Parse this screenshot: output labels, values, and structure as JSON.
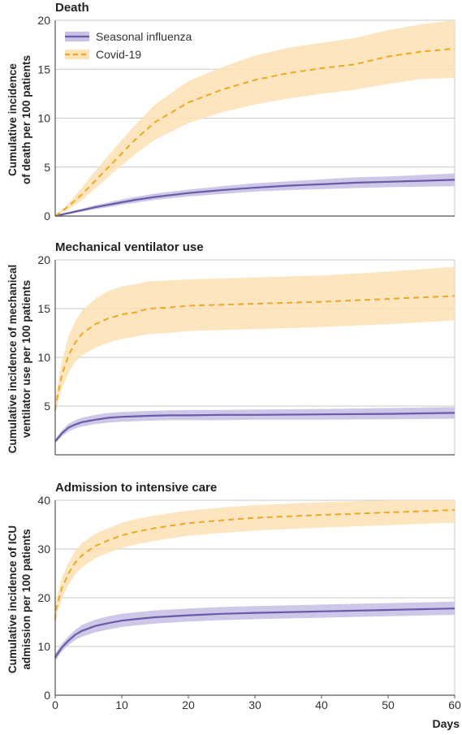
{
  "colors": {
    "influenza_line": "#6a5aa8",
    "influenza_band": "#c9c1e6",
    "covid_line": "#f0a81e",
    "covid_band": "#fde2b4",
    "grid": "#c8c8c8",
    "axis": "#555555"
  },
  "legend": {
    "items": [
      {
        "label": "Seasonal influenza",
        "style": "solid",
        "color_key": "influenza_line",
        "band_key": "influenza_band"
      },
      {
        "label": "Covid-19",
        "style": "dashed",
        "color_key": "covid_line",
        "band_key": "covid_band"
      }
    ]
  },
  "chart_data": [
    {
      "type": "line",
      "title": "Death",
      "ylabel_lines": [
        "Cumulative incidence",
        "of death per 100 patients"
      ],
      "xlabel": "",
      "xlim": [
        0,
        60
      ],
      "ylim": [
        0,
        20
      ],
      "yticks": [
        0,
        5,
        10,
        15,
        20
      ],
      "xticks": [],
      "grid": true,
      "legend_position": "top-left",
      "x": [
        0,
        2,
        4,
        6,
        8,
        10,
        12,
        15,
        20,
        25,
        30,
        35,
        40,
        45,
        50,
        55,
        60
      ],
      "series": [
        {
          "name": "Seasonal influenza",
          "style": "solid",
          "values": [
            0,
            0.3,
            0.6,
            0.9,
            1.15,
            1.4,
            1.65,
            1.95,
            2.35,
            2.65,
            2.9,
            3.1,
            3.25,
            3.4,
            3.5,
            3.6,
            3.7
          ],
          "lower": [
            0,
            0.2,
            0.45,
            0.7,
            0.9,
            1.15,
            1.35,
            1.65,
            2.0,
            2.25,
            2.5,
            2.65,
            2.75,
            2.85,
            2.95,
            3.0,
            3.05
          ],
          "upper": [
            0,
            0.4,
            0.75,
            1.1,
            1.4,
            1.7,
            1.95,
            2.3,
            2.7,
            3.05,
            3.35,
            3.55,
            3.75,
            3.95,
            4.05,
            4.2,
            4.35
          ]
        },
        {
          "name": "Covid-19",
          "style": "dashed",
          "values": [
            0,
            1.0,
            2.2,
            3.6,
            5.0,
            6.4,
            7.8,
            9.6,
            11.6,
            12.9,
            13.9,
            14.6,
            15.1,
            15.5,
            16.3,
            16.8,
            17.1
          ],
          "lower": [
            0,
            0.7,
            1.6,
            2.8,
            4.0,
            5.2,
            6.3,
            7.8,
            9.5,
            10.6,
            11.4,
            12.0,
            12.5,
            12.9,
            13.5,
            14.0,
            14.1
          ],
          "upper": [
            0,
            1.3,
            2.9,
            4.6,
            6.2,
            7.8,
            9.3,
            11.4,
            13.8,
            15.2,
            16.4,
            17.2,
            17.7,
            18.2,
            19.0,
            19.6,
            20.0
          ]
        }
      ]
    },
    {
      "type": "line",
      "title": "Mechanical ventilator use",
      "ylabel_lines": [
        "Cumulative incidence of mechanical",
        "ventilator use per 100 patients"
      ],
      "xlabel": "",
      "xlim": [
        0,
        60
      ],
      "ylim": [
        0,
        20
      ],
      "yticks": [
        5,
        10,
        15,
        20
      ],
      "xticks": [],
      "grid": true,
      "x": [
        0,
        0.1,
        1,
        2,
        3,
        4,
        6,
        8,
        10,
        12,
        14,
        17,
        20,
        25,
        30,
        40,
        50,
        60
      ],
      "series": [
        {
          "name": "Seasonal influenza",
          "style": "solid",
          "values": [
            1.4,
            1.45,
            2.2,
            2.8,
            3.1,
            3.35,
            3.6,
            3.8,
            3.9,
            3.95,
            4.0,
            4.05,
            4.05,
            4.1,
            4.1,
            4.15,
            4.2,
            4.3
          ],
          "lower": [
            1.2,
            1.25,
            1.9,
            2.4,
            2.7,
            2.9,
            3.15,
            3.3,
            3.4,
            3.45,
            3.5,
            3.55,
            3.55,
            3.55,
            3.6,
            3.6,
            3.65,
            3.7
          ],
          "upper": [
            1.6,
            1.7,
            2.5,
            3.2,
            3.55,
            3.8,
            4.1,
            4.3,
            4.4,
            4.45,
            4.5,
            4.55,
            4.6,
            4.6,
            4.65,
            4.7,
            4.8,
            4.9
          ]
        },
        {
          "name": "Covid-19",
          "style": "dashed",
          "values": [
            4.6,
            5.2,
            8.2,
            10.2,
            11.5,
            12.4,
            13.4,
            14.0,
            14.4,
            14.6,
            15.0,
            15.1,
            15.3,
            15.4,
            15.5,
            15.7,
            16.0,
            16.3
          ],
          "lower": [
            3.9,
            4.5,
            6.8,
            8.4,
            9.5,
            10.2,
            11.0,
            11.5,
            11.9,
            12.1,
            12.4,
            12.5,
            12.7,
            12.8,
            12.9,
            13.1,
            13.4,
            13.8
          ],
          "upper": [
            5.4,
            6.0,
            9.6,
            12.2,
            13.7,
            14.8,
            16.0,
            16.8,
            17.3,
            17.5,
            17.8,
            17.9,
            18.0,
            18.1,
            18.2,
            18.4,
            18.8,
            19.3
          ]
        }
      ]
    },
    {
      "type": "line",
      "title": "Admission to intensive care",
      "ylabel_lines": [
        "Cumulative incidence of ICU",
        "admission per 100 patients"
      ],
      "xlabel": "Days",
      "xlim": [
        0,
        60
      ],
      "ylim": [
        0,
        40
      ],
      "yticks": [
        0,
        10,
        20,
        30,
        40
      ],
      "xticks": [
        0,
        10,
        20,
        30,
        40,
        50,
        60
      ],
      "grid": true,
      "x": [
        0,
        0.1,
        1,
        2,
        3,
        4,
        6,
        8,
        10,
        12,
        15,
        20,
        25,
        30,
        40,
        50,
        60
      ],
      "series": [
        {
          "name": "Seasonal influenza",
          "style": "solid",
          "values": [
            7.6,
            8.0,
            9.8,
            11.2,
            12.4,
            13.2,
            14.2,
            14.8,
            15.3,
            15.6,
            16.0,
            16.4,
            16.7,
            16.9,
            17.2,
            17.5,
            17.8
          ],
          "lower": [
            6.9,
            7.3,
            9.0,
            10.3,
            11.3,
            12.0,
            12.9,
            13.5,
            14.0,
            14.3,
            14.7,
            15.1,
            15.4,
            15.6,
            15.9,
            16.2,
            16.5
          ],
          "upper": [
            8.3,
            8.7,
            10.6,
            12.1,
            13.4,
            14.4,
            15.5,
            16.2,
            16.7,
            17.0,
            17.4,
            17.8,
            18.1,
            18.3,
            18.6,
            18.9,
            19.2
          ]
        },
        {
          "name": "Covid-19",
          "style": "dashed",
          "values": [
            15.4,
            17.5,
            22.0,
            25.0,
            27.2,
            28.7,
            30.6,
            31.8,
            32.8,
            33.5,
            34.3,
            35.3,
            35.9,
            36.4,
            37.0,
            37.5,
            38.0
          ],
          "lower": [
            13.8,
            15.8,
            19.9,
            22.7,
            24.8,
            26.2,
            28.1,
            29.3,
            30.2,
            30.9,
            31.7,
            32.7,
            33.3,
            33.8,
            34.4,
            34.9,
            35.4
          ],
          "upper": [
            17.0,
            19.2,
            24.1,
            27.3,
            29.6,
            31.2,
            33.1,
            34.3,
            35.4,
            36.1,
            36.9,
            37.9,
            38.5,
            39.0,
            39.6,
            40.0,
            40.0
          ]
        }
      ]
    }
  ]
}
